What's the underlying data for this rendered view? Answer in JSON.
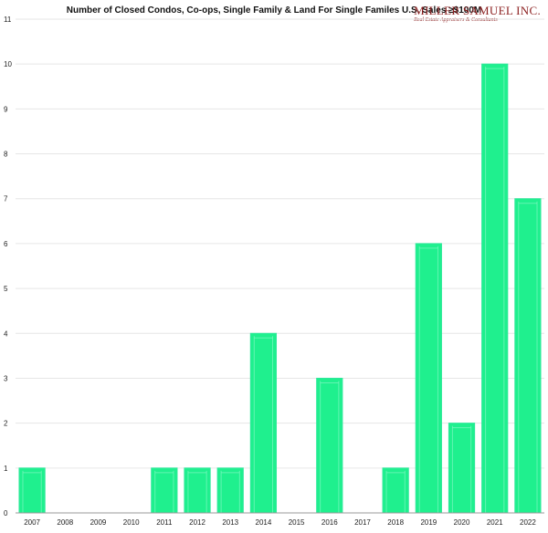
{
  "header": {
    "logo_name": "MILLER SAMUEL INC.",
    "logo_sub": "Real Estate Appraisers & Consultants"
  },
  "chart_data": {
    "type": "bar",
    "title": "Number of Closed Condos, Co-ops, Single Family & Land For Single Familes U.S. Sales ≥$100M",
    "xlabel": "",
    "ylabel": "",
    "categories": [
      "2007",
      "2008",
      "2009",
      "2010",
      "2011",
      "2012",
      "2013",
      "2014",
      "2015",
      "2016",
      "2017",
      "2018",
      "2019",
      "2020",
      "2021",
      "2022"
    ],
    "values": [
      1,
      0,
      0,
      0,
      1,
      1,
      1,
      4,
      0,
      3,
      0,
      1,
      6,
      2,
      10,
      7
    ],
    "ylim": [
      0,
      11
    ],
    "yticks": [
      0,
      1,
      2,
      3,
      4,
      5,
      6,
      7,
      8,
      9,
      10,
      11
    ],
    "grid": true,
    "legend": "none",
    "colors": {
      "bar_fill": "#1ff08e",
      "bar_edge": "#2ee89a",
      "bar_highlight": "#7ff7c2",
      "grid": "#e6e6e6",
      "axis": "#999999"
    }
  }
}
